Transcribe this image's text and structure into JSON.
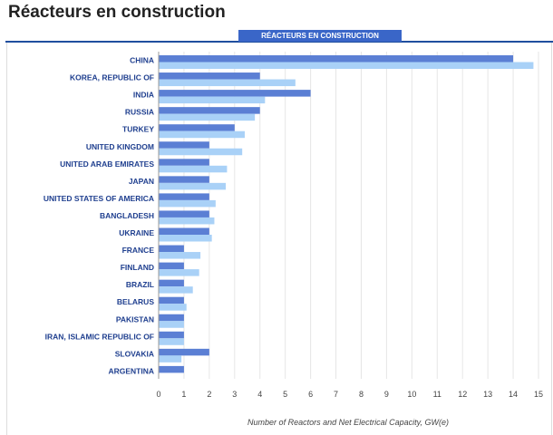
{
  "page": {
    "title": "Réacteurs en construction"
  },
  "chart_data": {
    "type": "bar",
    "orientation": "horizontal",
    "title": "RÉACTEURS EN CONSTRUCTION",
    "xlabel": "Number of Reactors and Net Electrical Capacity, GW(e)",
    "ylabel": "",
    "xlim": [
      0,
      15
    ],
    "xticks": [
      0,
      1,
      2,
      3,
      4,
      5,
      6,
      7,
      8,
      9,
      10,
      11,
      12,
      13,
      14,
      15
    ],
    "grid": true,
    "categories": [
      "CHINA",
      "KOREA, REPUBLIC OF",
      "INDIA",
      "RUSSIA",
      "TURKEY",
      "UNITED KINGDOM",
      "UNITED ARAB EMIRATES",
      "JAPAN",
      "UNITED STATES OF AMERICA",
      "BANGLADESH",
      "UKRAINE",
      "FRANCE",
      "FINLAND",
      "BRAZIL",
      "BELARUS",
      "PAKISTAN",
      "IRAN, ISLAMIC REPUBLIC OF",
      "SLOVAKIA",
      "ARGENTINA"
    ],
    "series": [
      {
        "values": [
          14,
          4,
          6,
          4,
          3,
          2,
          2,
          2,
          2,
          2,
          2,
          1,
          1,
          1,
          1,
          1,
          1,
          2,
          1
        ],
        "color": "#5b7fd4"
      },
      {
        "values": [
          14.8,
          5.4,
          4.2,
          3.8,
          3.4,
          3.3,
          2.7,
          2.65,
          2.25,
          2.2,
          2.1,
          1.65,
          1.6,
          1.35,
          1.1,
          1.0,
          1.0,
          0.9,
          null
        ],
        "color": "#a9d1f7"
      }
    ]
  }
}
